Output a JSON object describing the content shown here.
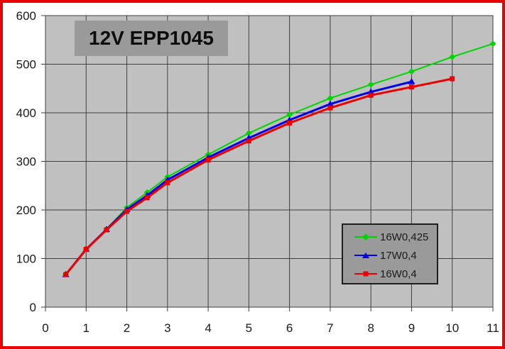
{
  "frame": {
    "border_color": "#ea0000"
  },
  "chart_data": {
    "type": "line",
    "title": "12V EPP1045",
    "xlabel": "",
    "ylabel": "",
    "xlim": [
      0,
      11
    ],
    "ylim": [
      0,
      600
    ],
    "x_ticks": [
      0,
      1,
      2,
      3,
      4,
      5,
      6,
      7,
      8,
      9,
      10,
      11
    ],
    "y_ticks": [
      0,
      100,
      200,
      300,
      400,
      500,
      600
    ],
    "grid": true,
    "legend_position": "lower-right",
    "x": [
      0.5,
      1,
      1.5,
      2,
      2.5,
      3,
      4,
      5,
      6,
      7,
      8,
      9,
      10,
      11
    ],
    "series": [
      {
        "name": "16W0,425",
        "color": "#00d500",
        "marker": "diamond",
        "line_width": 2,
        "values": [
          68,
          120,
          160,
          205,
          236,
          268,
          314,
          358,
          396,
          430,
          458,
          485,
          515,
          542
        ]
      },
      {
        "name": "17W0,4",
        "color": "#0000ee",
        "marker": "triangle",
        "line_width": 3,
        "values": [
          67,
          119,
          160,
          201,
          230,
          262,
          308,
          348,
          385,
          418,
          443,
          464
        ]
      },
      {
        "name": "16W0,4",
        "color": "#ee0000",
        "marker": "square",
        "line_width": 3,
        "values": [
          67,
          119,
          159,
          197,
          225,
          256,
          303,
          342,
          379,
          410,
          436,
          453,
          470
        ]
      }
    ],
    "colors": {
      "plot_bg": "#c0c0c0",
      "panel_bg": "#9a9a9a",
      "grid": "#3f3f3f",
      "plot_border": "#5a5a5a",
      "tick_label": "#1a1a1a"
    }
  }
}
